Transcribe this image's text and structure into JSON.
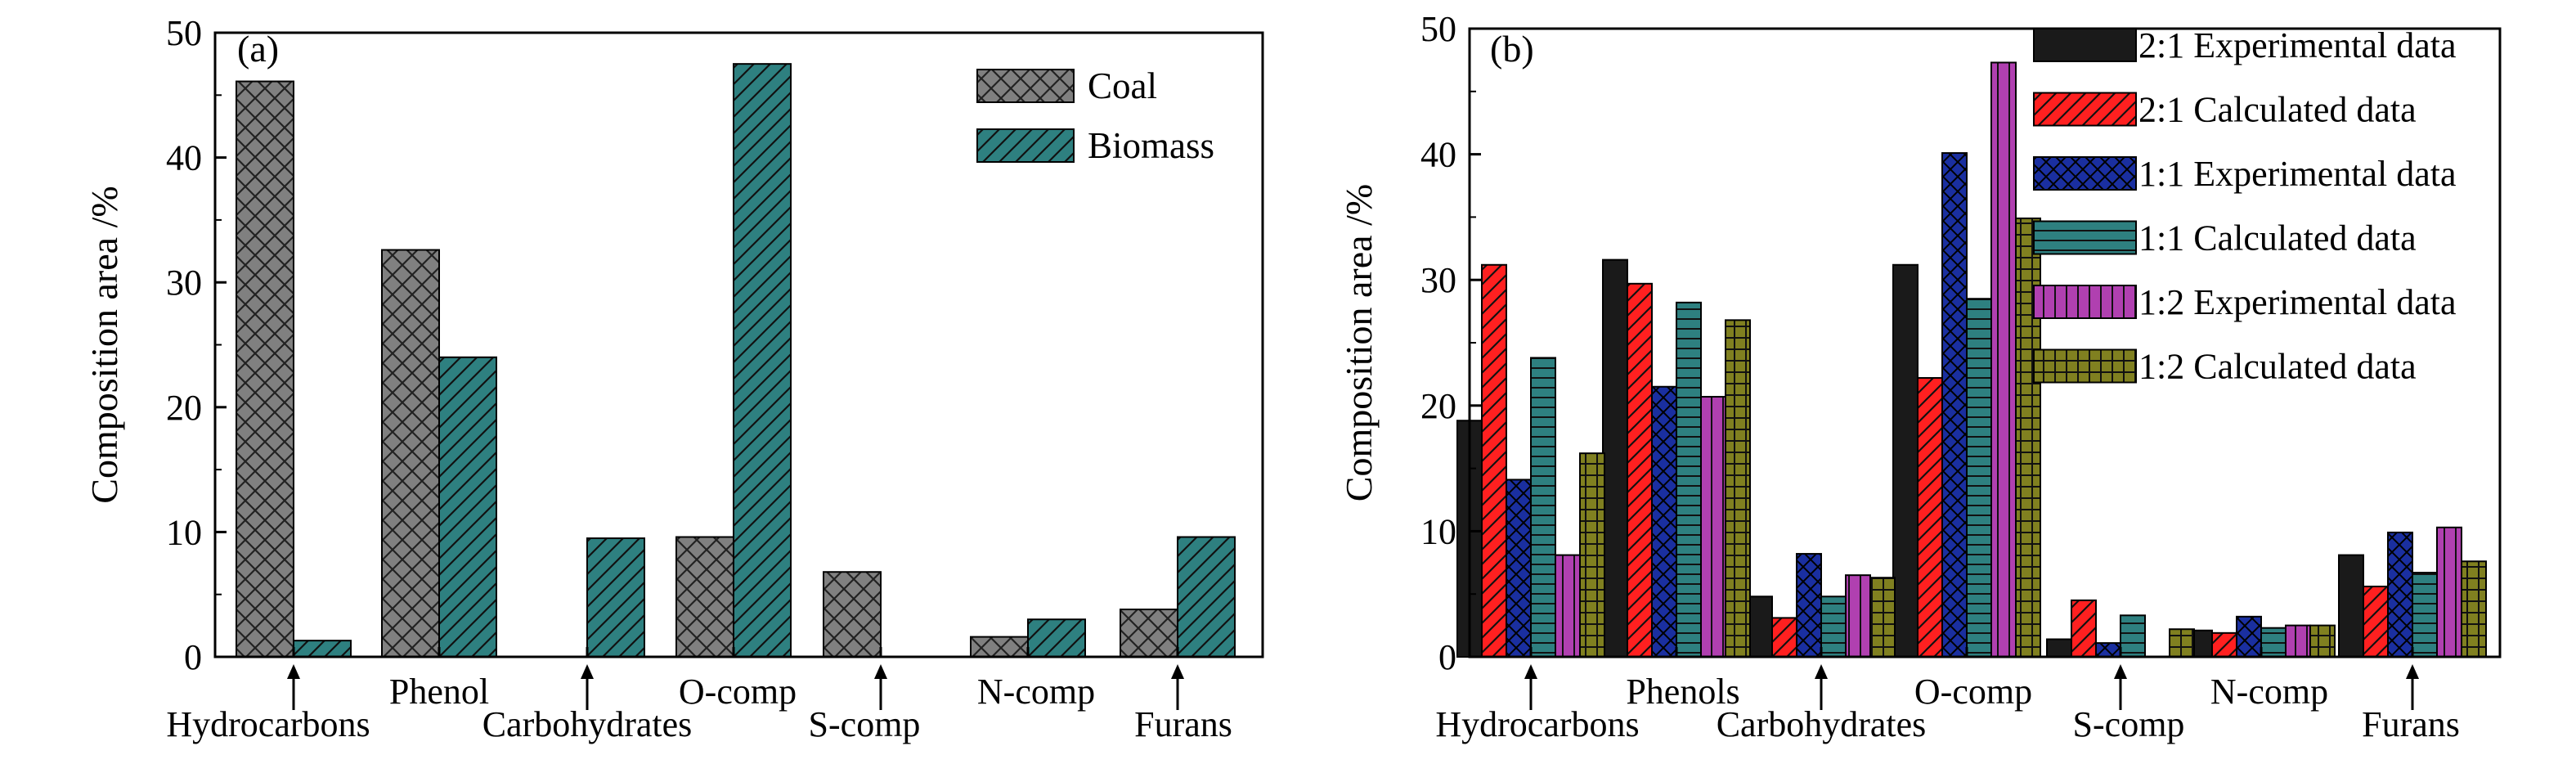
{
  "colors": {
    "coal": "#808080",
    "biomass": "#2e8080",
    "exp_2_1": "#000000",
    "calc_2_1": "#ff2020",
    "exp_1_1": "#1a2fa0",
    "calc_1_1": "#2e8080",
    "exp_1_2": "#b040b0",
    "calc_1_2": "#808020"
  },
  "chart_data": [
    {
      "type": "bar",
      "panel_label": "(a)",
      "ylabel": "Composition area /%",
      "ylim": [
        0,
        50
      ],
      "yticks": [
        "0",
        "10",
        "20",
        "30",
        "40",
        "50"
      ],
      "categories": [
        "Hydrocarbons",
        "Phenol",
        "Carbohydrates",
        "O-comp",
        "S-comp",
        "N-comp",
        "Furans"
      ],
      "arrow_categories": [
        "Hydrocarbons",
        "Carbohydrates",
        "S-comp",
        "Furans"
      ],
      "series": [
        {
          "name": "Coal",
          "values": [
            46.1,
            32.6,
            0,
            9.6,
            6.8,
            1.6,
            3.8
          ]
        },
        {
          "name": "Biomass",
          "values": [
            1.3,
            24.0,
            9.5,
            47.5,
            0,
            3.0,
            9.6
          ]
        }
      ],
      "legend_position": "top-right",
      "grid": false
    },
    {
      "type": "bar",
      "panel_label": "(b)",
      "ylabel": "Composition area /%",
      "ylim": [
        0,
        50
      ],
      "yticks": [
        "0",
        "10",
        "20",
        "30",
        "40",
        "50"
      ],
      "categories": [
        "Hydrocarbons",
        "Phenols",
        "Carbohydrates",
        "O-comp",
        "S-comp",
        "N-comp",
        "Furans"
      ],
      "arrow_categories": [
        "Hydrocarbons",
        "Carbohydrates",
        "S-comp",
        "Furans"
      ],
      "series": [
        {
          "name": "2:1 Experimental data",
          "values": [
            18.8,
            31.6,
            4.8,
            31.2,
            1.4,
            2.1,
            8.1
          ]
        },
        {
          "name": "2:1 Calculated data",
          "values": [
            31.2,
            29.7,
            3.1,
            22.2,
            4.5,
            1.9,
            5.6
          ]
        },
        {
          "name": "1:1 Experimental data",
          "values": [
            14.1,
            21.5,
            8.2,
            40.1,
            1.1,
            3.2,
            9.9
          ]
        },
        {
          "name": "1:1 Calculated data",
          "values": [
            23.8,
            28.2,
            4.8,
            28.5,
            3.3,
            2.3,
            6.7
          ]
        },
        {
          "name": "1:2 Experimental data",
          "values": [
            8.1,
            20.7,
            6.5,
            47.3,
            0,
            2.5,
            10.3
          ]
        },
        {
          "name": "1:2 Calculated data",
          "values": [
            16.2,
            26.8,
            6.3,
            34.9,
            2.2,
            2.5,
            7.6
          ]
        }
      ],
      "legend_position": "top-right",
      "grid": false
    }
  ]
}
